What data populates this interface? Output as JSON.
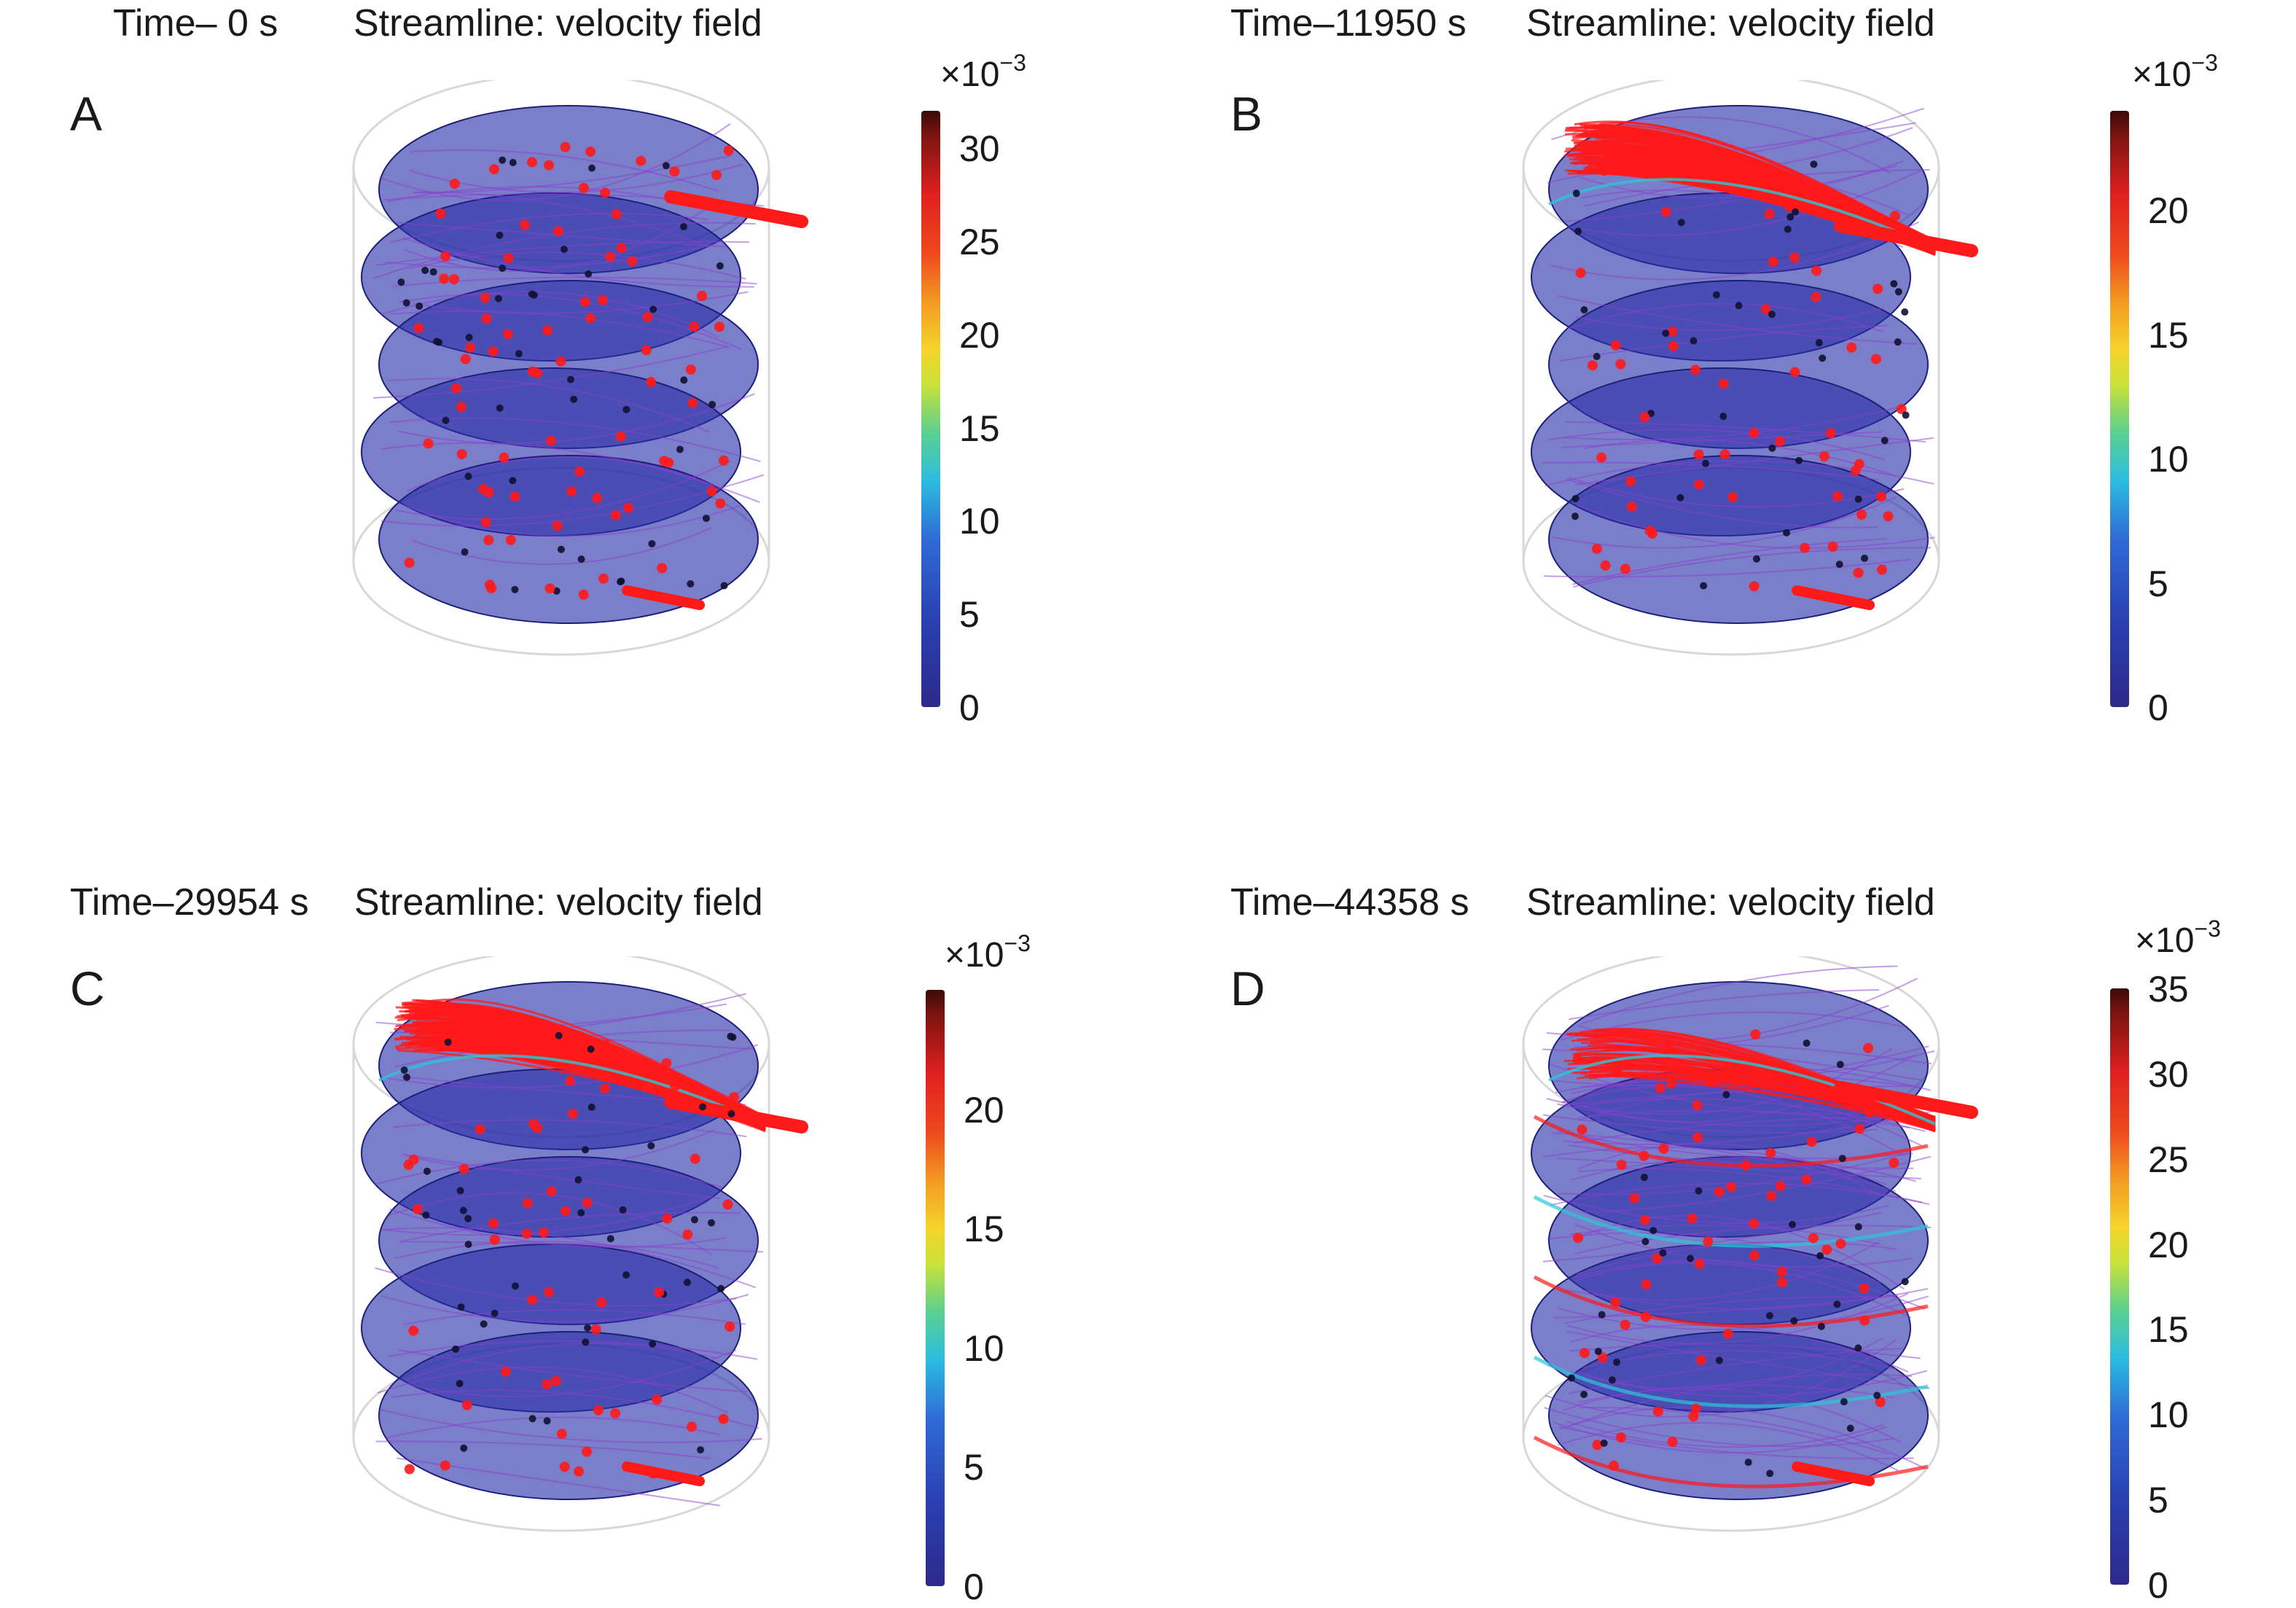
{
  "panels": [
    {
      "letter": "A",
      "time_label": "Time– 0 s",
      "plot_label": "Streamline: velocity field",
      "colorbar": {
        "exponent_prefix": "×10",
        "exponent_power": "−3",
        "ticks": [
          "0",
          "5",
          "10",
          "15",
          "20",
          "25",
          "30"
        ],
        "max": 32
      },
      "flow_state": "initial"
    },
    {
      "letter": "B",
      "time_label": "Time–11950 s",
      "plot_label": "Streamline: velocity field",
      "colorbar": {
        "exponent_prefix": "×10",
        "exponent_power": "−3",
        "ticks": [
          "0",
          "5",
          "10",
          "15",
          "20"
        ],
        "max": 24
      },
      "flow_state": "top-dense"
    },
    {
      "letter": "C",
      "time_label": "Time–29954 s",
      "plot_label": "Streamline: velocity field",
      "colorbar": {
        "exponent_prefix": "×10",
        "exponent_power": "−3",
        "ticks": [
          "0",
          "5",
          "10",
          "15",
          "20"
        ],
        "max": 25
      },
      "flow_state": "top-dense"
    },
    {
      "letter": "D",
      "time_label": "Time–44358 s",
      "plot_label": "Streamline: velocity field",
      "colorbar": {
        "exponent_prefix": "×10",
        "exponent_power": "−3",
        "ticks": [
          "0",
          "5",
          "10",
          "15",
          "20",
          "25",
          "30",
          "35"
        ],
        "max": 35
      },
      "flow_state": "spiral"
    }
  ],
  "colors": {
    "disc": "#2a2fa8",
    "disc_edge": "#1c1f7a",
    "streamline": "#ff1a1a",
    "streamline_purple": "#8a3fd0",
    "cyan_accent": "#2cc6d8",
    "frame": "#d8d8d8"
  }
}
